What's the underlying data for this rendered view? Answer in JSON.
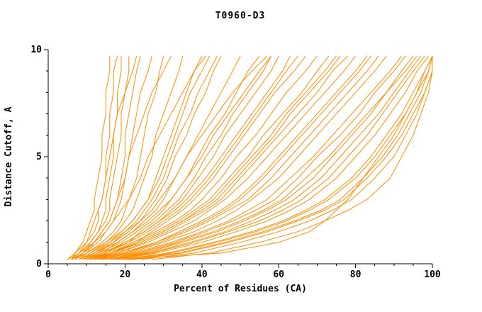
{
  "chart_data": {
    "type": "line",
    "title": "T0960-D3",
    "xlabel": "Percent of Residues (CA)",
    "ylabel": "Distance Cutoff, A",
    "xlim": [
      0,
      100
    ],
    "ylim": [
      0,
      10
    ],
    "x_major_ticks": [
      0,
      20,
      40,
      60,
      80,
      100
    ],
    "x_minor_step": 5,
    "y_major_ticks": [
      0,
      5,
      10
    ],
    "y_minor_step": 1,
    "grid": false,
    "legend": "none",
    "line_color": "#ff8c00",
    "axis_color": "#000000",
    "description": "GDT-style plot: each orange curve is one predicted model; x = percent of CA residues fitting under the distance cutoff y.",
    "cutoffs": [
      0.2,
      0.5,
      1,
      1.5,
      2,
      2.5,
      3,
      4,
      5,
      6,
      7,
      8,
      9,
      9.7
    ],
    "series": [
      [
        6,
        7,
        9,
        10,
        11,
        12,
        12,
        13,
        14,
        14,
        15,
        15,
        16,
        16
      ],
      [
        5,
        7,
        10,
        12,
        13,
        13,
        14,
        15,
        15,
        16,
        16,
        17,
        17,
        18
      ],
      [
        7,
        9,
        11,
        13,
        14,
        15,
        15,
        16,
        17,
        17,
        18,
        18,
        19,
        19
      ],
      [
        6,
        8,
        11,
        13,
        15,
        16,
        16,
        17,
        18,
        19,
        19,
        20,
        21,
        21
      ],
      [
        8,
        10,
        12,
        14,
        16,
        17,
        18,
        19,
        20,
        20,
        21,
        22,
        23,
        24
      ],
      [
        6,
        9,
        13,
        15,
        17,
        18,
        19,
        20,
        21,
        22,
        23,
        24,
        26,
        27
      ],
      [
        7,
        10,
        14,
        17,
        19,
        20,
        21,
        23,
        24,
        25,
        26,
        28,
        29,
        30
      ],
      [
        6,
        8,
        10,
        11,
        12,
        13,
        14,
        15,
        16,
        17,
        18,
        20,
        22,
        23
      ],
      [
        7,
        9,
        12,
        14,
        16,
        17,
        18,
        20,
        21,
        23,
        25,
        27,
        30,
        32
      ],
      [
        8,
        11,
        15,
        18,
        20,
        22,
        23,
        25,
        27,
        28,
        30,
        32,
        34,
        35
      ],
      [
        9,
        12,
        16,
        19,
        22,
        24,
        26,
        28,
        30,
        32,
        34,
        36,
        38,
        40
      ],
      [
        8,
        12,
        17,
        21,
        24,
        26,
        28,
        31,
        33,
        36,
        38,
        41,
        43,
        45
      ],
      [
        10,
        14,
        18,
        22,
        25,
        28,
        30,
        33,
        36,
        39,
        42,
        45,
        48,
        50
      ],
      [
        9,
        13,
        19,
        23,
        27,
        30,
        32,
        36,
        39,
        42,
        46,
        49,
        52,
        55
      ],
      [
        11,
        15,
        20,
        25,
        29,
        32,
        35,
        39,
        43,
        46,
        50,
        54,
        58,
        60
      ],
      [
        10,
        14,
        21,
        26,
        30,
        34,
        37,
        42,
        46,
        50,
        54,
        58,
        62,
        65
      ],
      [
        12,
        16,
        22,
        28,
        33,
        37,
        40,
        45,
        49,
        54,
        58,
        62,
        67,
        70
      ],
      [
        9,
        13,
        17,
        20,
        23,
        25,
        27,
        30,
        32,
        34,
        37,
        39,
        42,
        44
      ],
      [
        10,
        15,
        21,
        24,
        28,
        31,
        34,
        38,
        41,
        45,
        48,
        52,
        56,
        58
      ],
      [
        11,
        16,
        23,
        27,
        31,
        35,
        38,
        43,
        47,
        51,
        55,
        59,
        64,
        67
      ],
      [
        8,
        11,
        16,
        20,
        24,
        27,
        29,
        33,
        36,
        40,
        44,
        48,
        53,
        57
      ],
      [
        11,
        17,
        24,
        30,
        35,
        39,
        43,
        48,
        53,
        58,
        62,
        67,
        72,
        75
      ],
      [
        13,
        18,
        26,
        32,
        38,
        42,
        46,
        52,
        57,
        62,
        67,
        72,
        77,
        80
      ],
      [
        12,
        19,
        28,
        35,
        41,
        46,
        50,
        56,
        61,
        66,
        71,
        76,
        81,
        84
      ],
      [
        14,
        21,
        30,
        38,
        44,
        49,
        53,
        60,
        65,
        70,
        75,
        80,
        85,
        88
      ],
      [
        13,
        22,
        32,
        40,
        47,
        52,
        57,
        63,
        69,
        74,
        79,
        84,
        89,
        92
      ],
      [
        15,
        24,
        34,
        43,
        50,
        56,
        61,
        67,
        73,
        78,
        83,
        88,
        92,
        95
      ],
      [
        16,
        26,
        37,
        46,
        53,
        59,
        64,
        71,
        76,
        81,
        86,
        90,
        94,
        97
      ],
      [
        18,
        28,
        40,
        49,
        57,
        63,
        68,
        75,
        80,
        85,
        89,
        93,
        96,
        99
      ],
      [
        19,
        31,
        43,
        53,
        61,
        67,
        72,
        79,
        84,
        88,
        92,
        95,
        98,
        100
      ],
      [
        21,
        34,
        46,
        56,
        64,
        71,
        76,
        82,
        87,
        91,
        94,
        97,
        99,
        100
      ],
      [
        12,
        18,
        25,
        31,
        36,
        41,
        45,
        50,
        55,
        60,
        65,
        70,
        74,
        78
      ],
      [
        15,
        23,
        33,
        41,
        48,
        54,
        59,
        65,
        70,
        76,
        81,
        85,
        90,
        93
      ],
      [
        17,
        27,
        38,
        47,
        55,
        61,
        66,
        73,
        78,
        83,
        87,
        91,
        95,
        98
      ],
      [
        14,
        20,
        29,
        36,
        42,
        47,
        52,
        58,
        63,
        68,
        73,
        78,
        83,
        86
      ],
      [
        24,
        38,
        50,
        60,
        68,
        74,
        79,
        85,
        90,
        93,
        96,
        98,
        100,
        100
      ],
      [
        27,
        42,
        55,
        65,
        72,
        78,
        83,
        89,
        92,
        95,
        97,
        99,
        100,
        100
      ],
      [
        20,
        45,
        60,
        68,
        72,
        75,
        78,
        82,
        86,
        90,
        93,
        96,
        98,
        100
      ],
      [
        6,
        10,
        15,
        19,
        22,
        24,
        26,
        29,
        31,
        33,
        35,
        37,
        40,
        42
      ],
      [
        9,
        14,
        20,
        25,
        29,
        33,
        36,
        41,
        45,
        49,
        53,
        57,
        61,
        63
      ],
      [
        12,
        17,
        23,
        29,
        34,
        38,
        42,
        47,
        52,
        56,
        61,
        66,
        70,
        73
      ],
      [
        13,
        20,
        28,
        34,
        40,
        45,
        49,
        55,
        60,
        65,
        70,
        75,
        80,
        83
      ],
      [
        16,
        25,
        35,
        44,
        51,
        57,
        62,
        69,
        74,
        79,
        84,
        88,
        93,
        96
      ],
      [
        8,
        12,
        18,
        22,
        26,
        29,
        32,
        36,
        40,
        43,
        47,
        51,
        55,
        58
      ],
      [
        10,
        16,
        24,
        30,
        35,
        40,
        44,
        49,
        54,
        59,
        63,
        68,
        73,
        76
      ],
      [
        20,
        32,
        44,
        54,
        62,
        68,
        73,
        80,
        85,
        89,
        93,
        96,
        99,
        100
      ],
      [
        5,
        8,
        12,
        15,
        17,
        19,
        21,
        24,
        26,
        29,
        32,
        35,
        38,
        41
      ],
      [
        22,
        35,
        47,
        57,
        65,
        72,
        77,
        83,
        88,
        92,
        95,
        98,
        100,
        100
      ]
    ]
  }
}
